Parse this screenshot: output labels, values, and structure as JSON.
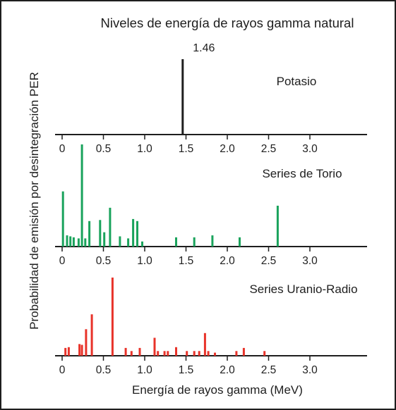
{
  "title": "Niveles de energía de rayos gamma natural",
  "ylabel": "Probabilidad de emisión por desintegración PER",
  "xlabel": "Energía de rayos gamma (MeV)",
  "colors": {
    "axis": "#1e1e1e",
    "potasio": "#1e1e1e",
    "torio": "#1aa35c",
    "uranio": "#e8332a",
    "border": "#1e1e1e"
  },
  "chart_data": [
    {
      "type": "bar",
      "title": "Potasio",
      "xlim": [
        0,
        3.5
      ],
      "xticks": [
        "0",
        "0.5",
        "1.0",
        "1.5",
        "2.0",
        "2.5",
        "3.0"
      ],
      "annotations": [
        "1.46"
      ],
      "x": [
        1.46
      ],
      "values": [
        1.0
      ]
    },
    {
      "type": "bar",
      "title": "Series de Torio",
      "xlim": [
        0,
        3.5
      ],
      "xticks": [
        "0",
        "0.5",
        "1.0",
        "1.5",
        "2.0",
        "2.5",
        "3.0"
      ],
      "x": [
        0.01,
        0.06,
        0.1,
        0.14,
        0.2,
        0.24,
        0.28,
        0.33,
        0.46,
        0.51,
        0.58,
        0.7,
        0.8,
        0.86,
        0.91,
        0.97,
        1.38,
        1.6,
        1.82,
        2.15,
        2.61
      ],
      "values": [
        0.54,
        0.11,
        0.1,
        0.09,
        0.08,
        1.0,
        0.08,
        0.25,
        0.26,
        0.14,
        0.38,
        0.1,
        0.08,
        0.27,
        0.25,
        0.05,
        0.09,
        0.09,
        0.11,
        0.09,
        0.4
      ]
    },
    {
      "type": "bar",
      "title": "Series Uranio-Radio",
      "xlim": [
        0,
        3.5
      ],
      "xticks": [
        "0",
        "0.5",
        "1.0",
        "1.5",
        "2.0",
        "2.5",
        "3.0"
      ],
      "x": [
        0.04,
        0.08,
        0.21,
        0.24,
        0.29,
        0.36,
        0.61,
        0.77,
        0.84,
        0.94,
        1.12,
        1.16,
        1.24,
        1.28,
        1.38,
        1.51,
        1.6,
        1.66,
        1.73,
        1.77,
        1.85,
        2.11,
        2.2,
        2.45
      ],
      "values": [
        0.1,
        0.11,
        0.15,
        0.14,
        0.34,
        0.53,
        1.0,
        0.1,
        0.06,
        0.1,
        0.23,
        0.06,
        0.06,
        0.06,
        0.11,
        0.06,
        0.06,
        0.06,
        0.29,
        0.06,
        0.04,
        0.06,
        0.1,
        0.06
      ]
    }
  ]
}
